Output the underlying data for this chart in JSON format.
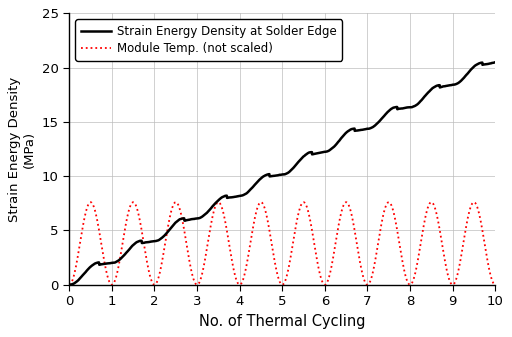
{
  "xlabel": "No. of Thermal Cycling",
  "ylabel": "Strain Energy Density (MPa)",
  "xlim": [
    0,
    10
  ],
  "ylim": [
    0,
    25
  ],
  "xticks": [
    0,
    1,
    2,
    3,
    4,
    5,
    6,
    7,
    8,
    9,
    10
  ],
  "yticks": [
    0,
    5,
    10,
    15,
    20,
    25
  ],
  "legend1": "Strain Energy Density at Solder Edge",
  "legend2": "Module Temp. (not scaled)",
  "line1_color": "#000000",
  "line2_color": "#ff0000",
  "background_color": "#ffffff",
  "grid_color": "#bbbbbb",
  "num_cycles": 10,
  "temp_amplitude": 7.6,
  "sed_final": 20.5,
  "points_per_cycle": 400
}
